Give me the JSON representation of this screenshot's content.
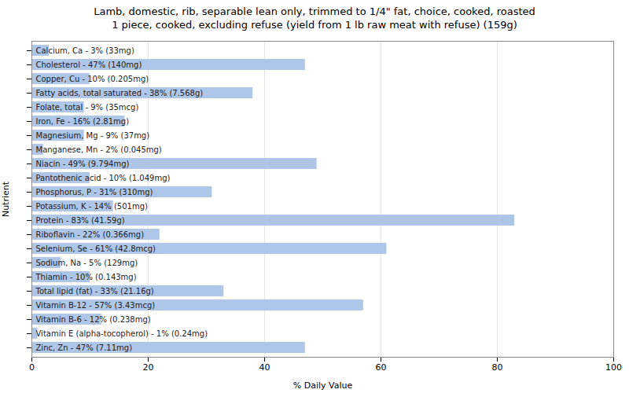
{
  "chart_data": {
    "type": "bar",
    "orientation": "horizontal",
    "title": "Lamb, domestic, rib, separable lean only, trimmed to 1/4\" fat, choice, cooked, roasted\n1 piece, cooked, excluding refuse (yield from 1 lb raw meat with refuse) (159g)",
    "x_label": "% Daily Value",
    "y_label": "Nutrient",
    "categories": [
      "Calcium, Ca - 3% (33mg)",
      "Cholesterol - 47% (140mg)",
      "Copper, Cu - 10% (0.205mg)",
      "Fatty acids, total saturated - 38% (7.568g)",
      "Folate, total - 9% (35mcg)",
      "Iron, Fe - 16% (2.81mg)",
      "Magnesium, Mg - 9% (37mg)",
      "Manganese, Mn - 2% (0.045mg)",
      "Niacin - 49% (9.794mg)",
      "Pantothenic acid - 10% (1.049mg)",
      "Phosphorus, P - 31% (310mg)",
      "Potassium, K - 14% (501mg)",
      "Protein - 83% (41.59g)",
      "Riboflavin - 22% (0.366mg)",
      "Selenium, Se - 61% (42.8mcg)",
      "Sodium, Na - 5% (129mg)",
      "Thiamin - 10% (0.143mg)",
      "Total lipid (fat) - 33% (21.16g)",
      "Vitamin B-12 - 57% (3.43mcg)",
      "Vitamin B-6 - 12% (0.238mg)",
      "Vitamin E (alpha-tocopherol) - 1% (0.24mg)",
      "Zinc, Zn - 47% (7.11mg)"
    ],
    "values": [
      3,
      47,
      10,
      38,
      9,
      16,
      9,
      2,
      49,
      10,
      31,
      14,
      83,
      22,
      61,
      5,
      10,
      33,
      57,
      12,
      1,
      47
    ],
    "color": "#aec6e8",
    "xlim": [
      0,
      100
    ],
    "xticks": [
      0,
      20,
      40,
      60,
      80,
      100
    ],
    "grid": true,
    "tick_labels": "x"
  }
}
